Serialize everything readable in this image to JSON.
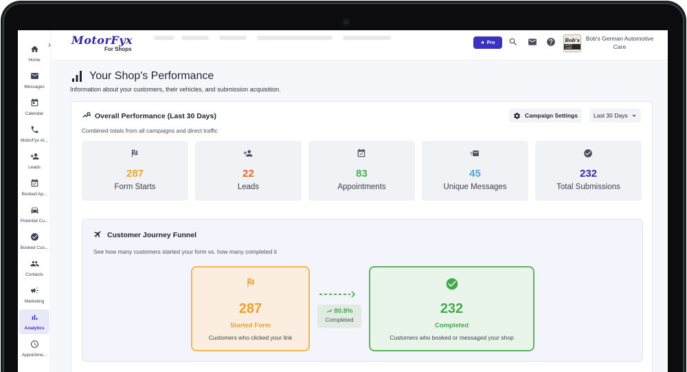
{
  "app": {
    "logo": "MotorFyx",
    "logo_sub": "For Shops",
    "pro_label": "Pro",
    "shop_name": "Bob's German Automotive Care",
    "shop_logo_text": "Bob's",
    "shop_logo_sub": "AUTO CARE"
  },
  "sidebar": {
    "items": [
      {
        "label": "Home",
        "icon": "home-icon"
      },
      {
        "label": "Messages",
        "icon": "mail-icon"
      },
      {
        "label": "Calendar",
        "icon": "calendar-icon"
      },
      {
        "label": "MotorFyx AI...",
        "icon": "phone-icon"
      },
      {
        "label": "Leads",
        "icon": "person-add-icon"
      },
      {
        "label": "Booked Ap...",
        "icon": "calendar-check-icon"
      },
      {
        "label": "Potential Cu...",
        "icon": "car-icon"
      },
      {
        "label": "Booked Cus...",
        "icon": "check-circle-icon"
      },
      {
        "label": "Contacts",
        "icon": "people-icon"
      },
      {
        "label": "Marketing",
        "icon": "megaphone-icon"
      },
      {
        "label": "Analytics",
        "icon": "bar-chart-icon",
        "active": true
      },
      {
        "label": "Appointme...",
        "icon": "clock-icon"
      }
    ]
  },
  "page": {
    "title": "Your Shop's Performance",
    "subtitle": "Information about your customers, their vehicles, and submission acquisition."
  },
  "overall": {
    "title": "Overall Performance (Last 30 Days)",
    "subtitle": "Combined totals from all campaigns and direct traffic",
    "settings_label": "Campaign Settings",
    "range_label": "Last 30 Days",
    "stats": [
      {
        "value": "287",
        "label": "Form Starts",
        "color": "#efa52c",
        "icon": "flag-icon"
      },
      {
        "value": "22",
        "label": "Leads",
        "color": "#e0692e",
        "icon": "person-add-icon"
      },
      {
        "value": "83",
        "label": "Appointments",
        "color": "#4ab050",
        "icon": "calendar-check-icon"
      },
      {
        "value": "45",
        "label": "Unique Messages",
        "color": "#4fa6d4",
        "icon": "mail-fast-icon"
      },
      {
        "value": "232",
        "label": "Total Submissions",
        "color": "#3329b0",
        "icon": "check-circle-icon"
      }
    ]
  },
  "funnel": {
    "title": "Customer Journey Funnel",
    "subtitle": "See how many customers started your form vs. how many completed it",
    "started": {
      "value": "287",
      "label": "Started Form",
      "desc": "Customers who clicked your link"
    },
    "rate": {
      "value": "80.8%",
      "label": "Completed"
    },
    "completed": {
      "value": "232",
      "label": "Completed",
      "desc": "Customers who booked or messaged your shop"
    }
  }
}
